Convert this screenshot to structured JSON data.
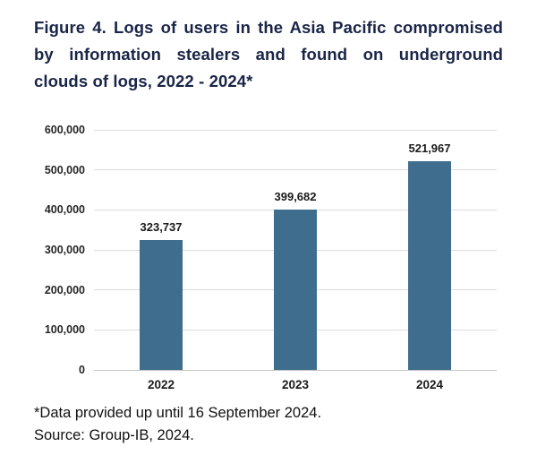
{
  "header": {
    "title_lines": [
      "Figure 4. Logs of users in the Asia Pacific compromised",
      "by information stealers and found on underground",
      "clouds of logs, 2022 - 2024*"
    ],
    "title_color": "#1a2547"
  },
  "chart_data": {
    "type": "bar",
    "title": "Figure 4. Logs of users in the Asia Pacific compromised by information stealers and found on underground clouds of logs, 2022 - 2024*",
    "categories": [
      "2022",
      "2023",
      "2024"
    ],
    "values": [
      323737,
      399682,
      521967
    ],
    "value_labels": [
      "323,737",
      "399,682",
      "521,967"
    ],
    "xlabel": "",
    "ylabel": "",
    "ylim": [
      0,
      600000
    ],
    "yticks": [
      {
        "value": 0,
        "label": "0"
      },
      {
        "value": 100000,
        "label": "100,000"
      },
      {
        "value": 200000,
        "label": "200,000"
      },
      {
        "value": 300000,
        "label": "300,000"
      },
      {
        "value": 400000,
        "label": "400,000"
      },
      {
        "value": 500000,
        "label": "500,000"
      },
      {
        "value": 600000,
        "label": "600,000"
      }
    ],
    "grid": true,
    "legend": false,
    "bar_color": "#3e6d8e",
    "gridline_color": "#dcdcdc",
    "axis_line_color": "#c4c4c4"
  },
  "footer": {
    "note": "*Data provided up until 16 September 2024.",
    "source": "Source: Group-IB, 2024."
  }
}
